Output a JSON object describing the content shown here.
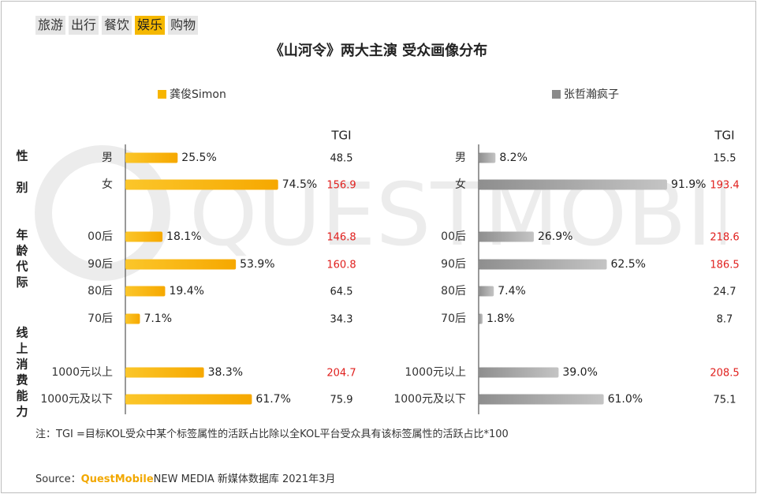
{
  "tabs": [
    "旅游",
    "出行",
    "餐饮",
    "娱乐",
    "购物"
  ],
  "active_tab": 3,
  "title": "《山河令》两大主演 受众画像分布",
  "watermark": "QUESTMOBILE",
  "colors": {
    "gong": "#f7b500",
    "zhang": "#8a8a8a",
    "tgi_high": "#e0201e",
    "tgi_normal": "#222222",
    "active_tab": "#f5b800"
  },
  "tgi_header": "TGI",
  "group_labels": {
    "gender": "性别",
    "age": "年龄代际",
    "spending": "线上消费能力"
  },
  "chart_data": {
    "type": "bar",
    "categories": [
      "男",
      "女",
      "00后",
      "90后",
      "80后",
      "70后",
      "1000元以上",
      "1000元及以下"
    ],
    "groups": [
      {
        "name": "性别",
        "categories": [
          "男",
          "女"
        ]
      },
      {
        "name": "年龄代际",
        "categories": [
          "00后",
          "90后",
          "80后",
          "70后"
        ]
      },
      {
        "name": "线上消费能力",
        "categories": [
          "1000元以上",
          "1000元及以下"
        ]
      }
    ],
    "series": [
      {
        "name": "龚俊Simon",
        "values": [
          25.5,
          74.5,
          18.1,
          53.9,
          19.4,
          7.1,
          38.3,
          61.7
        ],
        "labels": [
          "25.5%",
          "74.5%",
          "18.1%",
          "53.9%",
          "19.4%",
          "7.1%",
          "38.3%",
          "61.7%"
        ],
        "tgi": [
          "48.5",
          "156.9",
          "146.8",
          "160.8",
          "64.5",
          "34.3",
          "204.7",
          "75.9"
        ],
        "tgi_highlight": [
          false,
          true,
          true,
          true,
          false,
          false,
          true,
          false
        ]
      },
      {
        "name": "张哲瀚疯子",
        "values": [
          8.2,
          91.9,
          26.9,
          62.5,
          7.4,
          1.8,
          39.0,
          61.0
        ],
        "labels": [
          "8.2%",
          "91.9%",
          "26.9%",
          "62.5%",
          "7.4%",
          "1.8%",
          "39.0%",
          "61.0%"
        ],
        "tgi": [
          "15.5",
          "193.4",
          "218.6",
          "186.5",
          "24.7",
          "8.7",
          "208.5",
          "75.1"
        ],
        "tgi_highlight": [
          false,
          true,
          true,
          true,
          false,
          false,
          true,
          false
        ]
      }
    ],
    "xlim": [
      0,
      100
    ],
    "legend": "top"
  },
  "note": "注：TGI =目标KOL受众中某个标签属性的活跃占比除以全KOL平台受众具有该标签属性的活跃占比*100",
  "source": {
    "prefix": "Source：",
    "brand": "QuestMobile",
    "suffix": "NEW MEDIA 新媒体数据库 2021年3月"
  }
}
